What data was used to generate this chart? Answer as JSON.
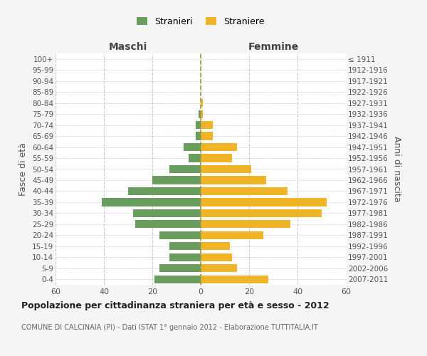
{
  "age_groups": [
    "100+",
    "95-99",
    "90-94",
    "85-89",
    "80-84",
    "75-79",
    "70-74",
    "65-69",
    "60-64",
    "55-59",
    "50-54",
    "45-49",
    "40-44",
    "35-39",
    "30-34",
    "25-29",
    "20-24",
    "15-19",
    "10-14",
    "5-9",
    "0-4"
  ],
  "birth_years": [
    "≤ 1911",
    "1912-1916",
    "1917-1921",
    "1922-1926",
    "1927-1931",
    "1932-1936",
    "1937-1941",
    "1942-1946",
    "1947-1951",
    "1952-1956",
    "1957-1961",
    "1962-1966",
    "1967-1971",
    "1972-1976",
    "1977-1981",
    "1982-1986",
    "1987-1991",
    "1992-1996",
    "1997-2001",
    "2002-2006",
    "2007-2011"
  ],
  "maschi": [
    0,
    0,
    0,
    0,
    0,
    1,
    2,
    2,
    7,
    5,
    13,
    20,
    30,
    41,
    28,
    27,
    17,
    13,
    13,
    17,
    19
  ],
  "femmine": [
    0,
    0,
    0,
    0,
    1,
    1,
    5,
    5,
    15,
    13,
    21,
    27,
    36,
    52,
    50,
    37,
    26,
    12,
    13,
    15,
    28
  ],
  "maschi_color": "#6a9e5f",
  "femmine_color": "#f0b429",
  "background_color": "#f5f5f5",
  "bar_background": "#ffffff",
  "grid_color": "#cccccc",
  "zero_line_color": "#999944",
  "title": "Popolazione per cittadinanza straniera per età e sesso - 2012",
  "subtitle": "COMUNE DI CALCINAIA (PI) - Dati ISTAT 1° gennaio 2012 - Elaborazione TUTTITALIA.IT",
  "legend_stranieri": "Stranieri",
  "legend_straniere": "Straniere",
  "header_maschi": "Maschi",
  "header_femmine": "Femmine",
  "ylabel_left": "Fasce di età",
  "ylabel_right": "Anni di nascita",
  "xlim": 60
}
